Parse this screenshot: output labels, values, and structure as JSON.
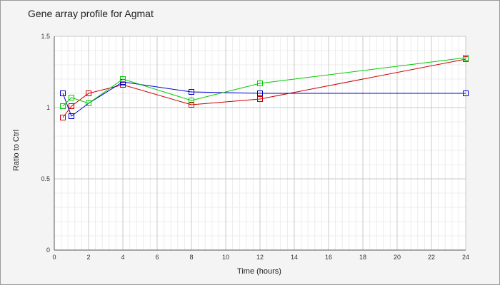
{
  "chart_data": {
    "type": "line",
    "title": "Gene array profile for Agmat",
    "xlabel": "Time (hours)",
    "ylabel": "Ratio to Ctrl",
    "xlim": [
      0,
      24
    ],
    "ylim": [
      0,
      1.5
    ],
    "xticks": [
      0,
      2,
      4,
      6,
      8,
      10,
      12,
      14,
      16,
      18,
      20,
      22,
      24
    ],
    "xtick_labels": [
      "0",
      "2",
      "4",
      "6",
      "8",
      "10",
      "12",
      "14",
      "16",
      "18",
      "20",
      "22",
      "24"
    ],
    "yticks": [
      0,
      0.5,
      1,
      1.5
    ],
    "ytick_labels": [
      "0",
      "0.5",
      "1",
      "1.5"
    ],
    "grid": true,
    "marker": "square",
    "series": [
      {
        "color": "#cc0000",
        "points": [
          [
            0.5,
            0.93
          ],
          [
            1,
            1.01
          ],
          [
            2,
            1.1
          ],
          [
            4,
            1.16
          ],
          [
            8,
            1.02
          ],
          [
            12,
            1.06
          ],
          [
            24,
            1.34
          ]
        ]
      },
      {
        "color": "#0000cc",
        "points": [
          [
            0.5,
            1.1
          ],
          [
            1,
            0.94
          ],
          [
            2,
            1.03
          ],
          [
            4,
            1.18
          ],
          [
            8,
            1.11
          ],
          [
            12,
            1.1
          ],
          [
            24,
            1.1
          ]
        ]
      },
      {
        "color": "#00cc00",
        "points": [
          [
            0.5,
            1.01
          ],
          [
            1,
            1.07
          ],
          [
            2,
            1.03
          ],
          [
            4,
            1.2
          ],
          [
            8,
            1.05
          ],
          [
            12,
            1.17
          ],
          [
            24,
            1.35
          ]
        ]
      }
    ]
  }
}
